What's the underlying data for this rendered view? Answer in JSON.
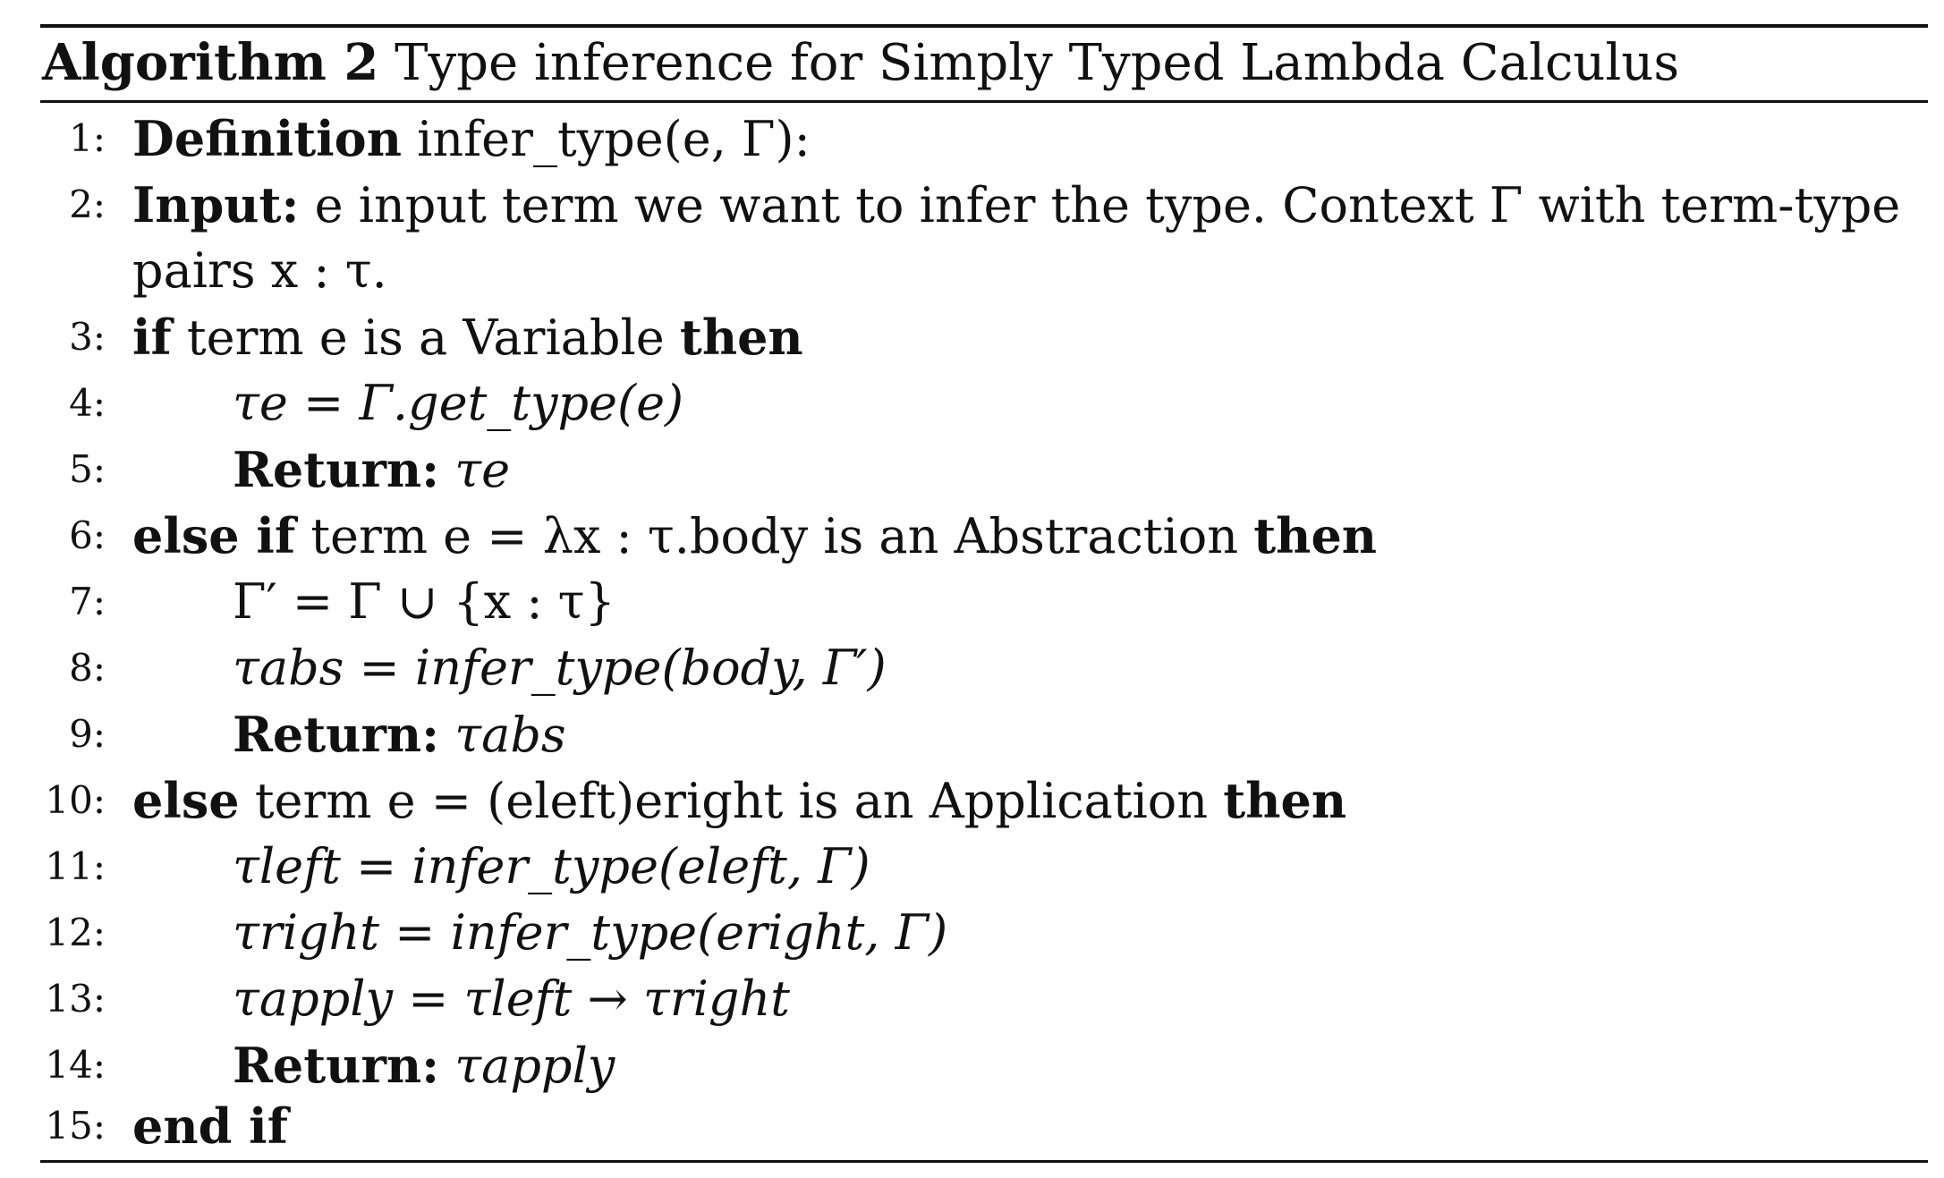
{
  "caption": {
    "label": "Algorithm 2",
    "title": "Type inference for Simply Typed Lambda Calculus"
  },
  "lines": [
    {
      "num": "1:"
    },
    {
      "num": "2:"
    },
    {
      "num": ""
    },
    {
      "num": "3:"
    },
    {
      "num": "4:"
    },
    {
      "num": "5:"
    },
    {
      "num": "6:"
    },
    {
      "num": "7:"
    },
    {
      "num": "8:"
    },
    {
      "num": "9:"
    },
    {
      "num": "10:"
    },
    {
      "num": "11:"
    },
    {
      "num": "12:"
    },
    {
      "num": "13:"
    },
    {
      "num": "14:"
    },
    {
      "num": "15:"
    }
  ],
  "text": {
    "definition_kw": "Definition",
    "definition_sig": "infer_type(e, Γ):",
    "input_kw": "Input:",
    "input_desc_1": "e input term we want to infer the type. Context Γ with term-type",
    "input_desc_2": "pairs x : τ.",
    "if_kw": "if",
    "if_cond": "term e is a Variable",
    "then_kw": "then",
    "l4": "τe = Γ.get_type(e)",
    "return_kw": "Return:",
    "l5_val": "τe",
    "elseif_kw": "else if",
    "l6_cond": "term e = λx : τ.body is an Abstraction",
    "l7": "Γ′ = Γ ∪ {x : τ}",
    "l8": "τabs = infer_type(body, Γ′)",
    "l9_val": "τabs",
    "else_kw": "else",
    "l10_cond": "term e = (eleft)eright is an Application",
    "l11": "τleft = infer_type(eleft, Γ)",
    "l12": "τright = infer_type(eright, Γ)",
    "l13": "τapply = τleft → τright",
    "l14_val": "τapply",
    "endif_kw": "end if"
  }
}
